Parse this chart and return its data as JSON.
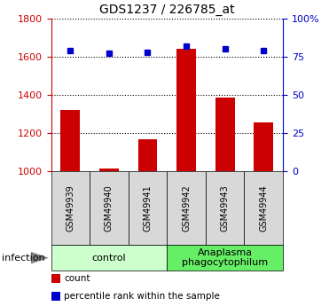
{
  "title": "GDS1237 / 226785_at",
  "samples": [
    "GSM49939",
    "GSM49940",
    "GSM49941",
    "GSM49942",
    "GSM49943",
    "GSM49944"
  ],
  "counts": [
    1320,
    1015,
    1170,
    1640,
    1385,
    1255
  ],
  "percentiles": [
    79,
    77,
    78,
    82,
    80,
    79
  ],
  "ylim_left": [
    1000,
    1800
  ],
  "ylim_right": [
    0,
    100
  ],
  "yticks_left": [
    1000,
    1200,
    1400,
    1600,
    1800
  ],
  "yticks_right": [
    0,
    25,
    50,
    75,
    100
  ],
  "ytick_labels_right": [
    "0",
    "25",
    "50",
    "75",
    "100%"
  ],
  "bar_color": "#cc0000",
  "dot_color": "#0000cc",
  "bar_width": 0.5,
  "groups": [
    {
      "label": "control",
      "indices": [
        0,
        1,
        2
      ],
      "color": "#ccffcc"
    },
    {
      "label": "Anaplasma\nphagocytophilum",
      "indices": [
        3,
        4,
        5
      ],
      "color": "#66ee66"
    }
  ],
  "infection_label": "infection",
  "legend_items": [
    {
      "label": "count",
      "color": "#cc0000"
    },
    {
      "label": "percentile rank within the sample",
      "color": "#0000cc"
    }
  ],
  "grid_color": "black",
  "plot_bg_color": "#d8d8d8",
  "fig_width": 3.71,
  "fig_height": 3.45,
  "dpi": 100
}
